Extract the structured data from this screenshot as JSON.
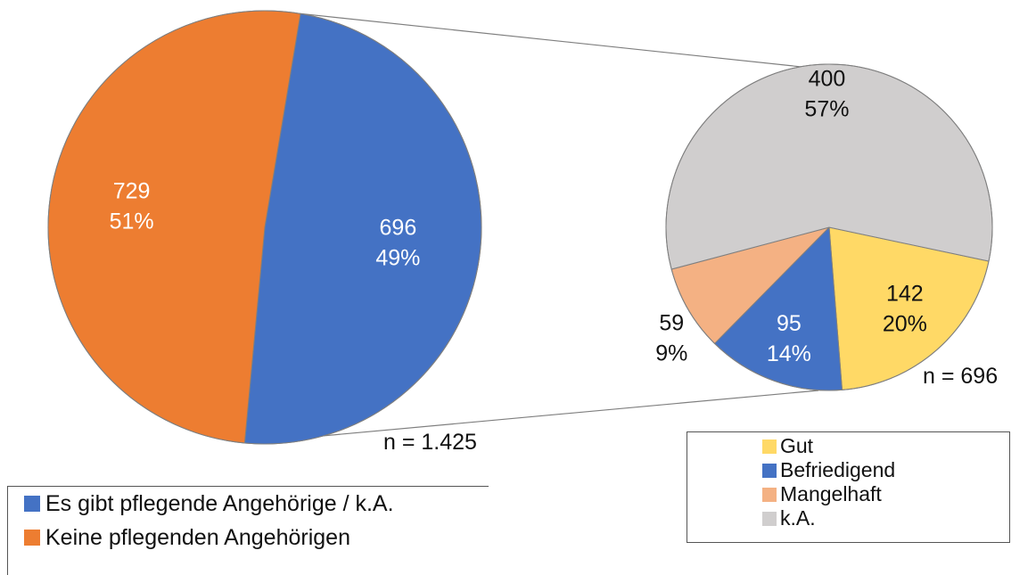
{
  "chart_data": [
    {
      "type": "pie",
      "n_label": "n = 1.425",
      "slices": [
        {
          "name": "Es gibt pflegende Angehörige / k.A.",
          "value": 696,
          "percent": "49%",
          "color": "#4472C4",
          "label_color": "#ffffff"
        },
        {
          "name": "Keine pflegenden Angehörigen",
          "value": 729,
          "percent": "51%",
          "color": "#ED7D31",
          "label_color": "#ffffff"
        }
      ],
      "legend_placement": "bottom-left"
    },
    {
      "type": "pie",
      "n_label": "n = 696",
      "slices": [
        {
          "name": "Gut",
          "value": 142,
          "percent": "20%",
          "color": "#FFD966",
          "label_color": "#111111"
        },
        {
          "name": "Befriedigend",
          "value": 95,
          "percent": "14%",
          "color": "#4472C4",
          "label_color": "#ffffff"
        },
        {
          "name": "Mangelhaft",
          "value": 59,
          "percent": "9%",
          "color": "#F4B183",
          "label_color": "#111111"
        },
        {
          "name": "k.A.",
          "value": 400,
          "percent": "57%",
          "color": "#D0CECE",
          "label_color": "#111111"
        }
      ],
      "legend_placement": "bottom-right"
    }
  ]
}
